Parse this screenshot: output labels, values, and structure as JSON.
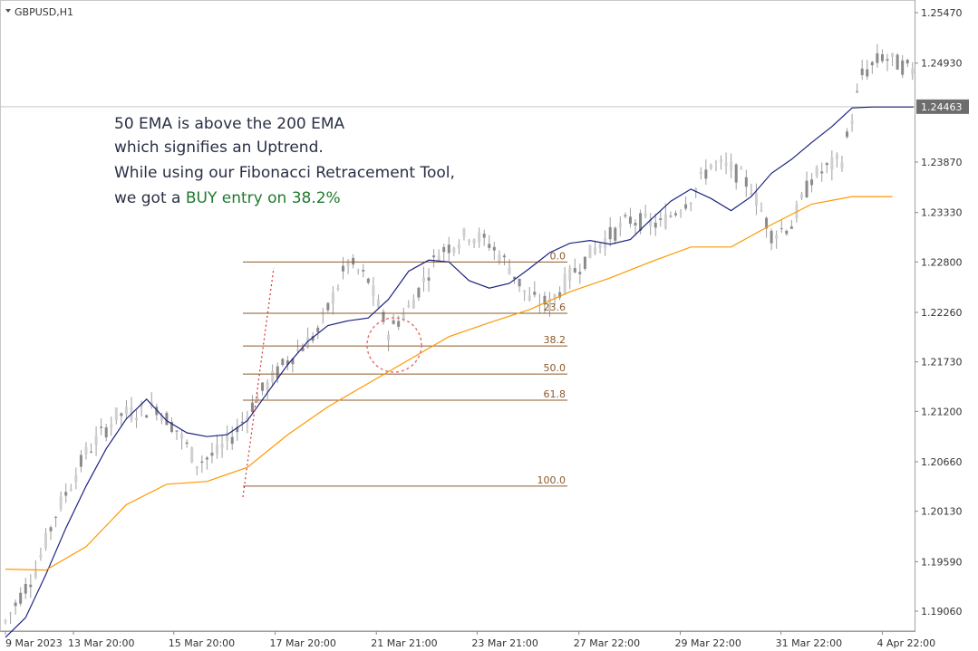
{
  "symbol": {
    "label": "GBPUSD,H1"
  },
  "note": {
    "lines": [
      "50 EMA is above the 200 EMA",
      "which signifies an Uptrend.",
      "While using our Fibonacci Retracement Tool,"
    ],
    "line4_prefix": "we got a ",
    "line4_highlight": "BUY",
    "line4_suffix": " entry on 38.2%"
  },
  "current_price": "1.24463",
  "colors": {
    "ema50": "#1a237e",
    "ema200": "#ff9800",
    "candle": "#9e9e9e",
    "fib": "#8a5a2b",
    "circle": "#e57373",
    "trend": "#d32f2f",
    "price_tag": "#6d6d6d"
  },
  "chart_data": {
    "type": "line",
    "title": "GBPUSD,H1",
    "ylim": [
      1.188,
      1.258
    ],
    "y_ticks": [
      "1.25470",
      "1.24930",
      "1.24463",
      "1.23870",
      "1.23330",
      "1.22800",
      "1.22260",
      "1.21730",
      "1.21200",
      "1.20660",
      "1.20130",
      "1.19590",
      "1.19060"
    ],
    "x_ticks": [
      {
        "label": "9 Mar 2023",
        "index": 0
      },
      {
        "label": "13 Mar 20:00",
        "index": 13.5
      },
      {
        "label": "15 Mar 20:00",
        "index": 33.4
      },
      {
        "label": "17 Mar 20:00",
        "index": 53.5
      },
      {
        "label": "21 Mar 21:00",
        "index": 73.6
      },
      {
        "label": "23 Mar 21:00",
        "index": 93.6
      },
      {
        "label": "27 Mar 22:00",
        "index": 113.8
      },
      {
        "label": "29 Mar 22:00",
        "index": 133.9
      },
      {
        "label": "31 Mar 22:00",
        "index": 153.9
      },
      {
        "label": "4 Apr 22:00",
        "index": 174.0
      }
    ],
    "series": [
      {
        "name": "50 EMA",
        "x": [
          0,
          4,
          8,
          12,
          16,
          20,
          24,
          28,
          32,
          36,
          40,
          44,
          48,
          52,
          56,
          60,
          64,
          68,
          72,
          76,
          80,
          84,
          88,
          92,
          96,
          100,
          104,
          108,
          112,
          116,
          120,
          124,
          128,
          132,
          136,
          140,
          144,
          148,
          152,
          156,
          160,
          164,
          168,
          172,
          176,
          180,
          184
        ],
        "values": [
          1.1878,
          1.1899,
          1.1945,
          1.1995,
          1.204,
          1.208,
          1.2112,
          1.2133,
          1.211,
          1.2097,
          1.2093,
          1.2095,
          1.211,
          1.214,
          1.217,
          1.2195,
          1.2212,
          1.2217,
          1.222,
          1.224,
          1.227,
          1.2282,
          1.228,
          1.226,
          1.2252,
          1.2257,
          1.2273,
          1.229,
          1.23,
          1.2303,
          1.2299,
          1.2304,
          1.2325,
          1.2345,
          1.2358,
          1.2348,
          1.2335,
          1.235,
          1.2375,
          1.239,
          1.2408,
          1.2425,
          1.2445,
          1.2446,
          1.2446,
          1.2446,
          1.2446
        ]
      },
      {
        "name": "200 EMA",
        "x": [
          0,
          8,
          16,
          24,
          32,
          40,
          48,
          56,
          64,
          72,
          80,
          88,
          96,
          104,
          112,
          120,
          128,
          136,
          144,
          152,
          160,
          168,
          176
        ],
        "values": [
          1.1951,
          1.195,
          1.1975,
          1.202,
          1.2042,
          1.2045,
          1.206,
          1.2095,
          1.2125,
          1.215,
          1.2175,
          1.22,
          1.2215,
          1.2229,
          1.2248,
          1.2263,
          1.228,
          1.2296,
          1.2296,
          1.232,
          1.2342,
          1.235,
          1.235
        ]
      }
    ],
    "fibonacci": [
      {
        "label": "0.0",
        "price": 1.228
      },
      {
        "label": "23.6",
        "price": 1.2225
      },
      {
        "label": "38.2",
        "price": 1.219
      },
      {
        "label": "50.0",
        "price": 1.216
      },
      {
        "label": "61.8",
        "price": 1.2132
      },
      {
        "label": "100.0",
        "price": 1.204
      }
    ]
  }
}
